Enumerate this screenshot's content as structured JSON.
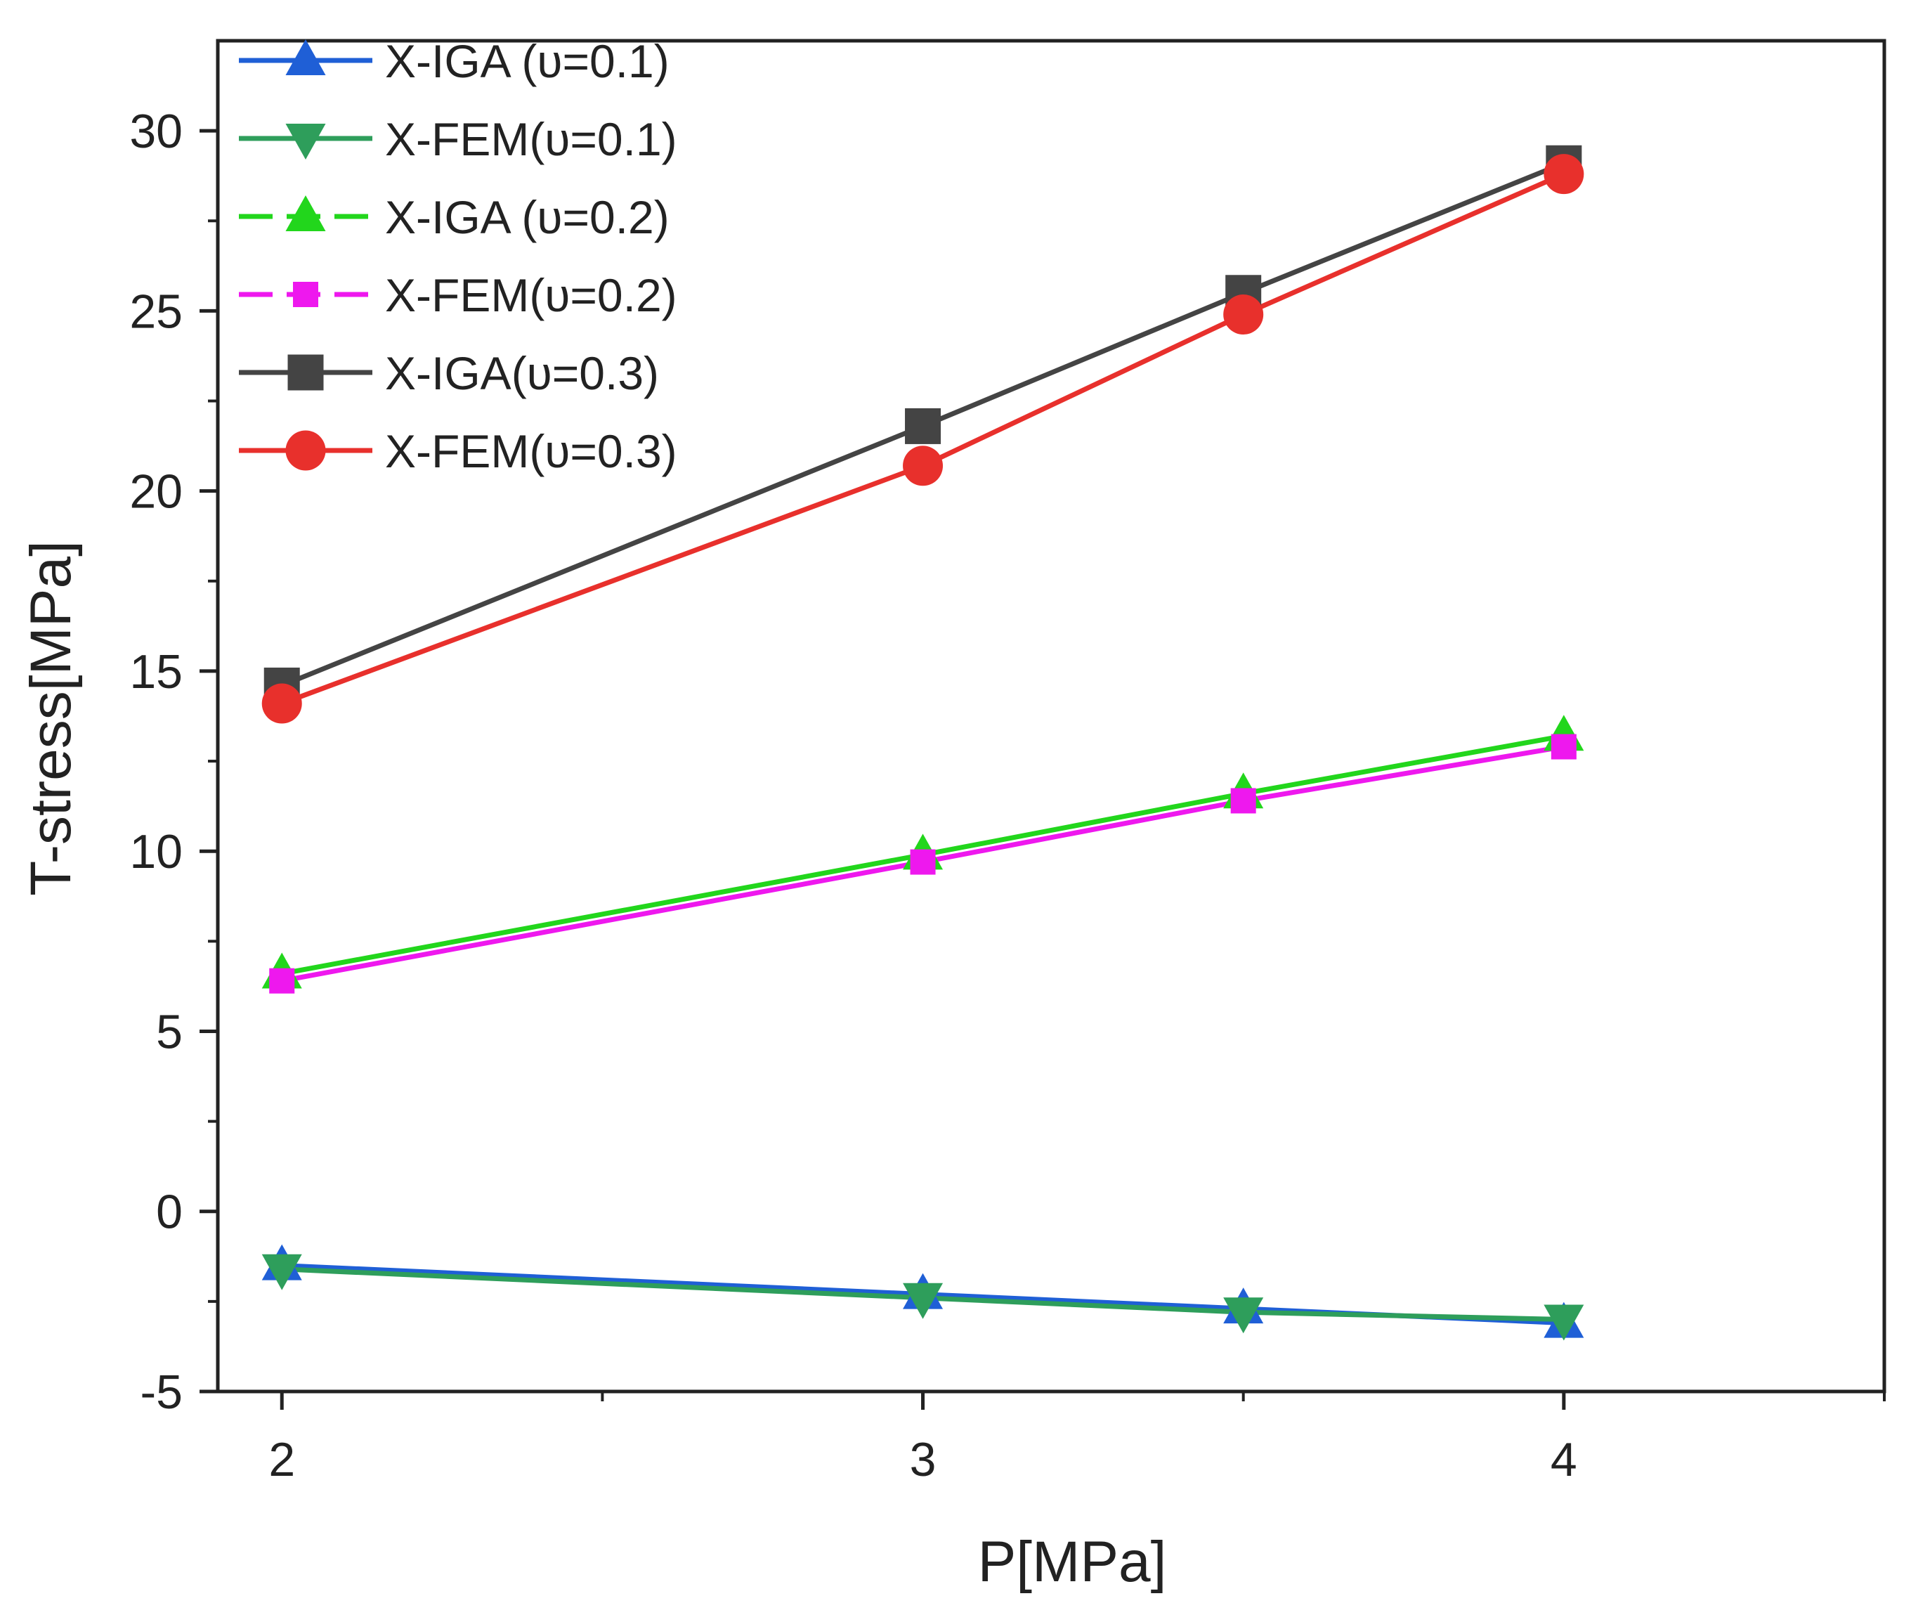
{
  "chart_data": {
    "type": "line",
    "title": "",
    "xlabel": "P[MPa]",
    "ylabel": "T-stress[MPa]",
    "xlim": [
      1.9,
      4.5
    ],
    "ylim": [
      -5,
      32.5
    ],
    "x_ticks": [
      2,
      3,
      4
    ],
    "x_minor_ticks": [
      2.5,
      3.5,
      4.5
    ],
    "y_ticks": [
      -5,
      0,
      5,
      10,
      15,
      20,
      25,
      30
    ],
    "y_minor_ticks": [
      -2.5,
      2.5,
      7.5,
      12.5,
      17.5,
      22.5,
      27.5
    ],
    "grid": false,
    "legend_position": "top-left",
    "x": [
      2,
      3,
      3.5,
      4
    ],
    "series": [
      {
        "name": "X-IGA (υ=0.1)",
        "color": "#1f5fd6",
        "marker": "triangle-up",
        "values": [
          -1.5,
          -2.3,
          -2.7,
          -3.1
        ]
      },
      {
        "name": "X-FEM(υ=0.1)",
        "color": "#2e9e5b",
        "marker": "triangle-down",
        "values": [
          -1.6,
          -2.4,
          -2.8,
          -3.0
        ]
      },
      {
        "name": "X-IGA (υ=0.2)",
        "color": "#22d61c",
        "marker": "triangle-up",
        "dashed": true,
        "values": [
          6.6,
          9.9,
          11.6,
          13.2
        ]
      },
      {
        "name": "X-FEM(υ=0.2)",
        "color": "#ee18ee",
        "marker": "square-small",
        "dashed": true,
        "values": [
          6.4,
          9.7,
          11.4,
          12.9
        ]
      },
      {
        "name": "X-IGA(υ=0.3)",
        "color": "#444444",
        "marker": "square",
        "values": [
          14.6,
          21.8,
          25.5,
          29.1
        ]
      },
      {
        "name": "X-FEM(υ=0.3)",
        "color": "#e8302c",
        "marker": "circle",
        "values": [
          14.1,
          20.7,
          24.9,
          28.8
        ]
      }
    ]
  }
}
